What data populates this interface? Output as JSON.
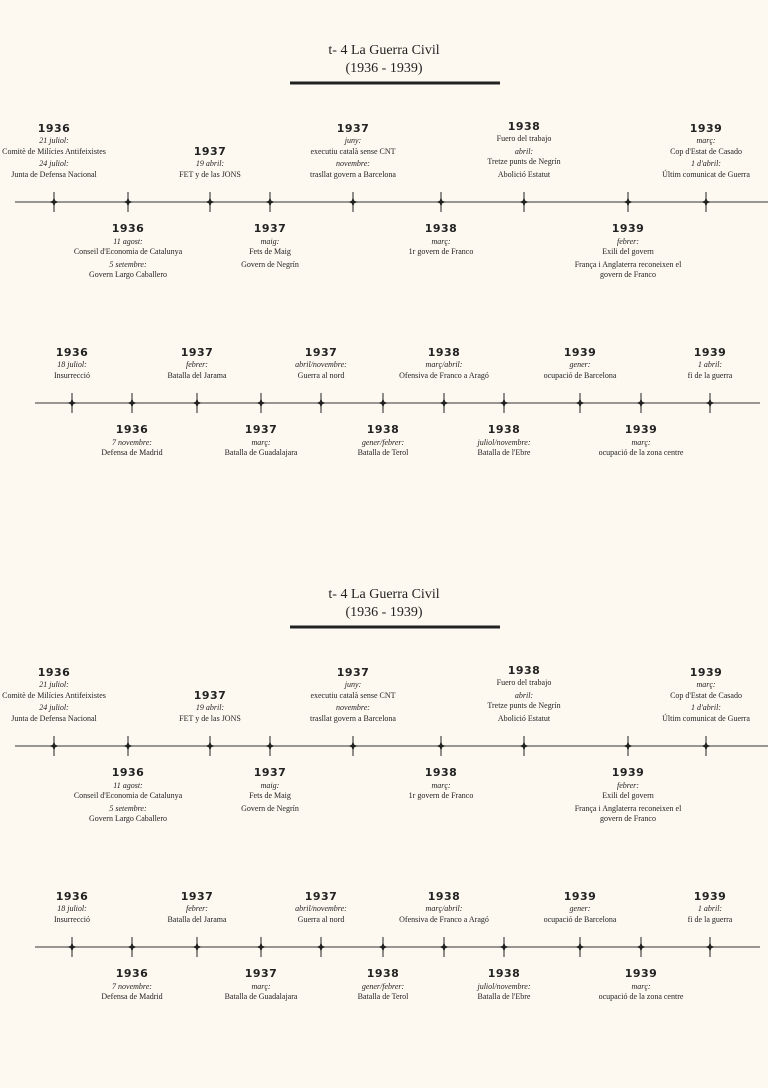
{
  "header": {
    "title": "t- 4 La Guerra Civil",
    "subtitle": "(1936 - 1939)"
  },
  "timeline1": {
    "events": [
      {
        "year": "1936",
        "items": [
          {
            "date": "21 juliol:",
            "text": "Comitè de Milícies Antifeixistes"
          },
          {
            "date": "24 juliol:",
            "text": "Junta de Defensa Nacional"
          }
        ]
      },
      {
        "year": "1936",
        "items": [
          {
            "date": "11 agost:",
            "text": "Conseil d'Economia de Catalunya"
          },
          {
            "date": "5 setembre:",
            "text": "Govern Largo Caballero"
          }
        ]
      },
      {
        "year": "1937",
        "items": [
          {
            "date": "19 abril:",
            "text": "FET y de las JONS"
          }
        ]
      },
      {
        "year": "1937",
        "items": [
          {
            "date": "maig:",
            "text": "Fets de Maig"
          },
          {
            "text": "Govern de Negrín"
          }
        ]
      },
      {
        "year": "1937",
        "items": [
          {
            "date": "juny:",
            "text": "executiu català sense CNT"
          },
          {
            "date": "novembre:",
            "text": "trasllat govern a Barcelona"
          }
        ]
      },
      {
        "year": "1938",
        "items": [
          {
            "date": "març:",
            "text": "1r govern de Franco"
          }
        ]
      },
      {
        "year": "1938",
        "items": [
          {
            "text": "Fuero del trabajo"
          },
          {
            "date": "abril:",
            "text": "Tretze punts de Negrín"
          },
          {
            "text": "Abolició Estatut"
          }
        ]
      },
      {
        "year": "1939",
        "items": [
          {
            "date": "febrer:",
            "text": "Exili del govern"
          },
          {
            "text": "França i Anglaterra reconeixen el govern de Franco"
          }
        ]
      },
      {
        "year": "1939",
        "items": [
          {
            "date": "març:",
            "text": "Cop d'Estat de Casado"
          },
          {
            "date": "1 d'abril:",
            "text": "Últim comunicat de Guerra"
          }
        ]
      }
    ]
  },
  "timeline2": {
    "events": [
      {
        "year": "1936",
        "items": [
          {
            "date": "18 juliol:",
            "text": "Insurrecció"
          }
        ]
      },
      {
        "year": "1936",
        "items": [
          {
            "date": "7 novembre:",
            "text": "Defensa de Madrid"
          }
        ]
      },
      {
        "year": "1937",
        "items": [
          {
            "date": "febrer:",
            "text": "Batalla del Jarama"
          }
        ]
      },
      {
        "year": "1937",
        "items": [
          {
            "date": "març:",
            "text": "Batalla de Guadalajara"
          }
        ]
      },
      {
        "year": "1937",
        "items": [
          {
            "date": "abril/novembre:",
            "text": "Guerra al nord"
          }
        ]
      },
      {
        "year": "1938",
        "items": [
          {
            "date": "gener/febrer:",
            "text": "Batalla de Terol"
          }
        ]
      },
      {
        "year": "1938",
        "items": [
          {
            "date": "març/abril:",
            "text": "Ofensiva de Franco a Aragó"
          }
        ]
      },
      {
        "year": "1938",
        "items": [
          {
            "date": "juliol/novembre:",
            "text": "Batalla de l'Ebre"
          }
        ]
      },
      {
        "year": "1939",
        "items": [
          {
            "date": "gener:",
            "text": "ocupació de Barcelona"
          }
        ]
      },
      {
        "year": "1939",
        "items": [
          {
            "date": "març:",
            "text": "ocupació de la zona centre"
          }
        ]
      },
      {
        "year": "1939",
        "items": [
          {
            "date": "1 abril:",
            "text": "fi de la guerra"
          }
        ]
      }
    ]
  }
}
